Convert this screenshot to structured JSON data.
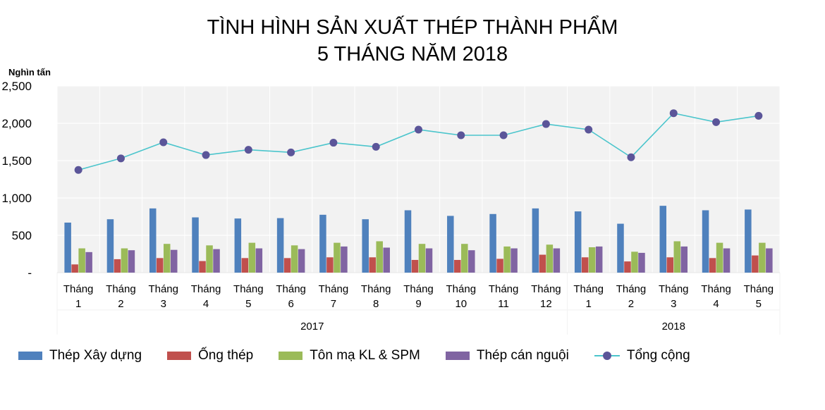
{
  "title_line1": "TÌNH HÌNH SẢN XUẤT THÉP THÀNH PHẨM",
  "title_line2": "5 THÁNG NĂM 2018",
  "y_unit_label": "Nghìn tấn",
  "colors": {
    "thep_xay_dung": "#4f81bd",
    "ong_thep": "#c0504d",
    "ton_ma": "#9bbb59",
    "thep_can_nguoi": "#8064a2",
    "tong_cong_line": "#4bc5cc",
    "tong_cong_marker": "#5b5599",
    "plot_bg": "#f2f2f2",
    "grid": "#ffffff"
  },
  "chart_data": {
    "type": "bar",
    "title": "TÌNH HÌNH SẢN XUẤT THÉP THÀNH PHẨM 5 THÁNG NĂM 2018",
    "ylabel": "Nghìn tấn",
    "ylim": [
      0,
      2500
    ],
    "yticks": [
      {
        "value": 0,
        "label": "-"
      },
      {
        "value": 500,
        "label": "500"
      },
      {
        "value": 1000,
        "label": "1,000"
      },
      {
        "value": 1500,
        "label": "1,500"
      },
      {
        "value": 2000,
        "label": "2,000"
      },
      {
        "value": 2500,
        "label": "2,500"
      }
    ],
    "grid": true,
    "legend_position": "bottom",
    "categories": [
      [
        "Tháng",
        "1"
      ],
      [
        "Tháng",
        "2"
      ],
      [
        "Tháng",
        "3"
      ],
      [
        "Tháng",
        "4"
      ],
      [
        "Tháng",
        "5"
      ],
      [
        "Tháng",
        "6"
      ],
      [
        "Tháng",
        "7"
      ],
      [
        "Tháng",
        "8"
      ],
      [
        "Tháng",
        "9"
      ],
      [
        "Tháng",
        "10"
      ],
      [
        "Tháng",
        "11"
      ],
      [
        "Tháng",
        "12"
      ],
      [
        "Tháng",
        "1"
      ],
      [
        "Tháng",
        "2"
      ],
      [
        "Tháng",
        "3"
      ],
      [
        "Tháng",
        "4"
      ],
      [
        "Tháng",
        "5"
      ]
    ],
    "groups": [
      {
        "label": "2017",
        "count": 12
      },
      {
        "label": "2018",
        "count": 5
      }
    ],
    "series": [
      {
        "name": "Thép Xây dựng",
        "type": "bar",
        "color": "#4f81bd",
        "values": [
          670,
          715,
          860,
          740,
          725,
          730,
          775,
          715,
          835,
          760,
          785,
          860,
          820,
          655,
          895,
          835,
          845
        ]
      },
      {
        "name": "Ống thép",
        "type": "bar",
        "color": "#c0504d",
        "values": [
          110,
          180,
          195,
          155,
          195,
          195,
          205,
          205,
          170,
          170,
          185,
          240,
          205,
          150,
          205,
          195,
          230
        ]
      },
      {
        "name": "Tôn mạ KL & SPM",
        "type": "bar",
        "color": "#9bbb59",
        "values": [
          325,
          325,
          385,
          365,
          400,
          365,
          400,
          420,
          385,
          385,
          350,
          375,
          340,
          280,
          420,
          400,
          400
        ]
      },
      {
        "name": "Thép cán nguội",
        "type": "bar",
        "color": "#8064a2",
        "values": [
          275,
          300,
          305,
          315,
          325,
          315,
          350,
          335,
          325,
          300,
          325,
          325,
          350,
          265,
          350,
          325,
          325
        ]
      },
      {
        "name": "Tổng cộng",
        "type": "line",
        "color": "#4bc5cc",
        "marker_color": "#5b5599",
        "values": [
          1375,
          1530,
          1745,
          1575,
          1645,
          1610,
          1740,
          1685,
          1915,
          1840,
          1840,
          1990,
          1915,
          1545,
          2135,
          2015,
          2100
        ]
      }
    ]
  }
}
